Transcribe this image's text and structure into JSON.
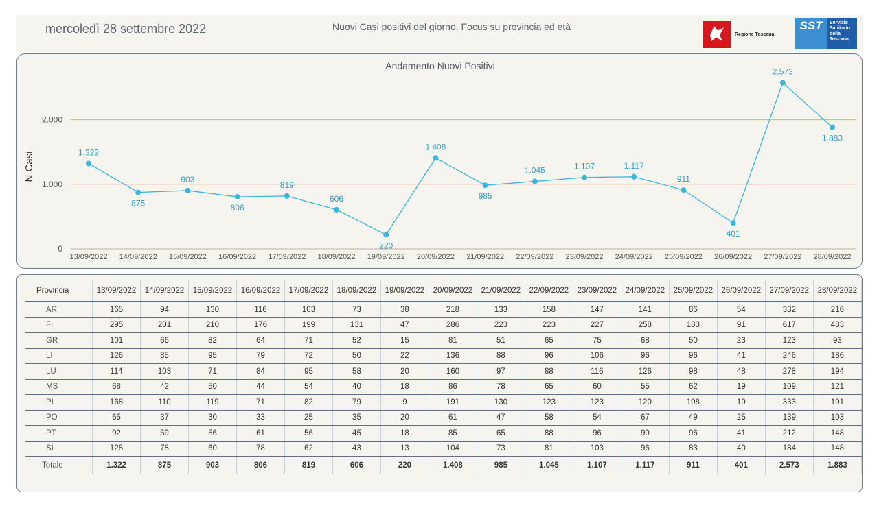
{
  "header": {
    "date": "mercoledì 28 settembre 2022",
    "subtitle": "Nuovi Casi positivi del giorno. Focus su provincia ed età",
    "logo_regione": "Regione Toscana",
    "logo_sst_short": "SST",
    "logo_sst_text": "Servizio Sanitario della Toscana"
  },
  "colors": {
    "line": "#39b6dc",
    "gridline": "#e0a690",
    "panel_bg": "#f6f4ef",
    "border": "#6c7f8c"
  },
  "chart_data": {
    "type": "line",
    "title": "Andamento Nuovi Positivi",
    "ylabel": "N.Casi",
    "xlabel": "",
    "ylim": [
      0,
      2800
    ],
    "yticks": [
      0,
      1000,
      2000
    ],
    "ytick_labels": [
      "0",
      "1.000",
      "2.000"
    ],
    "categories": [
      "13/09/2022",
      "14/09/2022",
      "15/09/2022",
      "16/09/2022",
      "17/09/2022",
      "18/09/2022",
      "19/09/2022",
      "20/09/2022",
      "21/09/2022",
      "22/09/2022",
      "23/09/2022",
      "24/09/2022",
      "25/09/2022",
      "26/09/2022",
      "27/09/2022",
      "28/09/2022"
    ],
    "values": [
      1322,
      875,
      903,
      806,
      819,
      606,
      220,
      1408,
      985,
      1045,
      1107,
      1117,
      911,
      401,
      2573,
      1883
    ],
    "value_labels": [
      "1.322",
      "875",
      "903",
      "806",
      "819",
      "606",
      "220",
      "1.408",
      "985",
      "1.045",
      "1.107",
      "1.117",
      "911",
      "401",
      "2.573",
      "1.883"
    ],
    "grid": true,
    "legend": "none"
  },
  "table": {
    "header_label": "Provincia",
    "rows": [
      {
        "name": "AR",
        "values": [
          "165",
          "94",
          "130",
          "116",
          "103",
          "73",
          "38",
          "218",
          "133",
          "158",
          "147",
          "141",
          "86",
          "54",
          "332",
          "216"
        ]
      },
      {
        "name": "FI",
        "values": [
          "295",
          "201",
          "210",
          "176",
          "199",
          "131",
          "47",
          "286",
          "223",
          "223",
          "227",
          "258",
          "183",
          "91",
          "617",
          "483"
        ]
      },
      {
        "name": "GR",
        "values": [
          "101",
          "66",
          "82",
          "64",
          "71",
          "52",
          "15",
          "81",
          "51",
          "65",
          "75",
          "68",
          "50",
          "23",
          "123",
          "93"
        ]
      },
      {
        "name": "LI",
        "values": [
          "126",
          "85",
          "95",
          "79",
          "72",
          "50",
          "22",
          "136",
          "88",
          "96",
          "106",
          "96",
          "96",
          "41",
          "246",
          "186"
        ]
      },
      {
        "name": "LU",
        "values": [
          "114",
          "103",
          "71",
          "84",
          "95",
          "58",
          "20",
          "160",
          "97",
          "88",
          "116",
          "126",
          "98",
          "48",
          "278",
          "194"
        ]
      },
      {
        "name": "MS",
        "values": [
          "68",
          "42",
          "50",
          "44",
          "54",
          "40",
          "18",
          "86",
          "78",
          "65",
          "60",
          "55",
          "62",
          "19",
          "109",
          "121"
        ]
      },
      {
        "name": "PI",
        "values": [
          "168",
          "110",
          "119",
          "71",
          "82",
          "79",
          "9",
          "191",
          "130",
          "123",
          "123",
          "120",
          "108",
          "19",
          "333",
          "191"
        ]
      },
      {
        "name": "PO",
        "values": [
          "65",
          "37",
          "30",
          "33",
          "25",
          "35",
          "20",
          "61",
          "47",
          "58",
          "54",
          "67",
          "49",
          "25",
          "139",
          "103"
        ]
      },
      {
        "name": "PT",
        "values": [
          "92",
          "59",
          "56",
          "61",
          "56",
          "45",
          "18",
          "85",
          "65",
          "88",
          "96",
          "90",
          "96",
          "41",
          "212",
          "148"
        ]
      },
      {
        "name": "SI",
        "values": [
          "128",
          "78",
          "60",
          "78",
          "62",
          "43",
          "13",
          "104",
          "73",
          "81",
          "103",
          "96",
          "83",
          "40",
          "184",
          "148"
        ]
      }
    ],
    "total": {
      "name": "Totale",
      "values": [
        "1.322",
        "875",
        "903",
        "806",
        "819",
        "606",
        "220",
        "1.408",
        "985",
        "1.045",
        "1.107",
        "1.117",
        "911",
        "401",
        "2.573",
        "1.883"
      ]
    }
  }
}
